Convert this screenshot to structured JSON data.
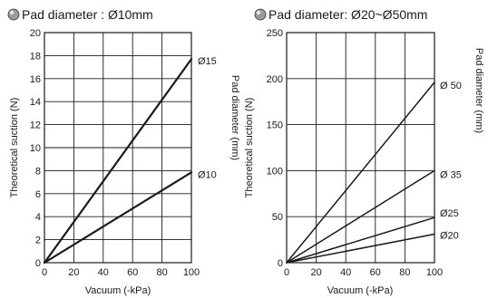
{
  "chart_data": [
    {
      "type": "line",
      "title": "Pad diameter : Ø10mm",
      "xlabel": "Vacuum  (-kPa)",
      "ylabel": "Theoretical suction (N)",
      "right_label": "Pad diameter (mm)",
      "xlim": [
        0,
        100
      ],
      "ylim": [
        0,
        20
      ],
      "xticks": [
        0,
        20,
        40,
        60,
        80,
        100
      ],
      "yticks": [
        0,
        2,
        4,
        6,
        8,
        10,
        12,
        14,
        16,
        18,
        20
      ],
      "grid": true,
      "series": [
        {
          "name": "Ø15",
          "x": [
            0,
            100
          ],
          "y": [
            0,
            17.7
          ],
          "stroke_width": 2.2
        },
        {
          "name": "Ø10",
          "x": [
            0,
            100
          ],
          "y": [
            0,
            7.85
          ],
          "stroke_width": 2.2
        }
      ]
    },
    {
      "type": "line",
      "title": "Pad diameter: Ø20~Ø50mm",
      "xlabel": "Vacuum  (-kPa)",
      "ylabel": "Theoretical suction (N)",
      "right_label": "Pad diameter (mm)",
      "xlim": [
        0,
        100
      ],
      "ylim": [
        0,
        250
      ],
      "xticks": [
        0,
        20,
        40,
        60,
        80,
        100
      ],
      "yticks": [
        0,
        50,
        100,
        150,
        200,
        250
      ],
      "grid": true,
      "series": [
        {
          "name": "Ø 50",
          "x": [
            0,
            100
          ],
          "y": [
            0,
            196
          ],
          "stroke_width": 1.5
        },
        {
          "name": "Ø 35",
          "x": [
            0,
            100
          ],
          "y": [
            0,
            100
          ],
          "stroke_width": 1.5
        },
        {
          "name": "Ø25",
          "x": [
            0,
            100
          ],
          "y": [
            0,
            49
          ],
          "stroke_width": 1.5
        },
        {
          "name": "Ø20",
          "x": [
            0,
            100
          ],
          "y": [
            0,
            31
          ],
          "stroke_width": 1.5
        }
      ]
    }
  ],
  "colors": {
    "line": "#1a1a1a",
    "grid": "#1a1a1a",
    "bullet_fill": "#9a9a9a",
    "bullet_stroke": "#333333"
  },
  "icons": [
    "bullet-icon"
  ]
}
